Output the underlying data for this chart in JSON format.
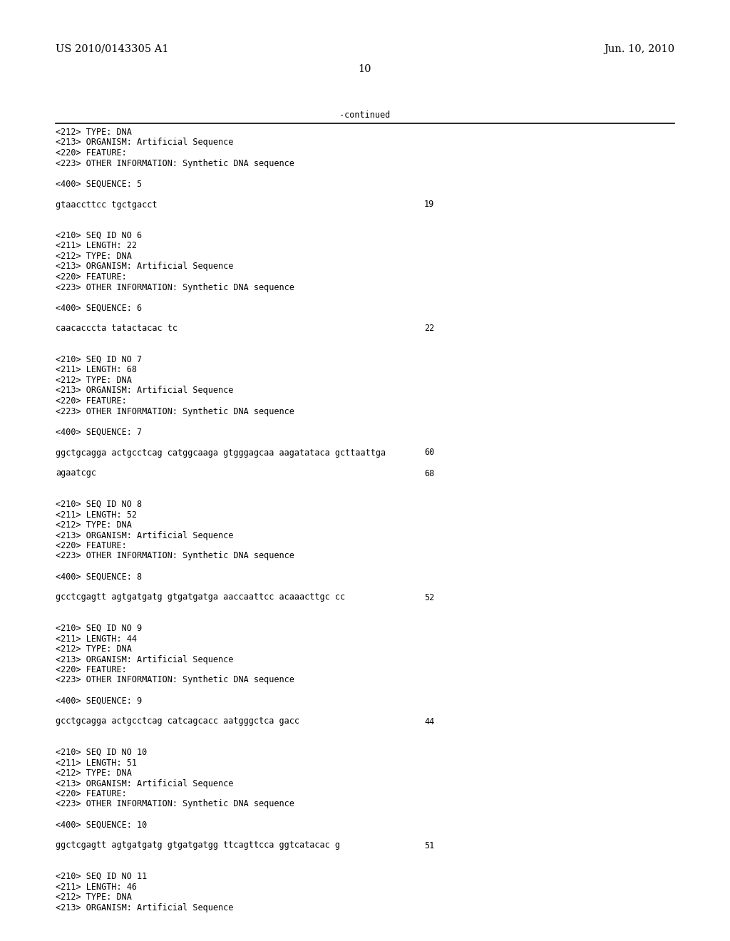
{
  "header_left": "US 2010/0143305 A1",
  "header_right": "Jun. 10, 2010",
  "page_number": "10",
  "continued_label": "-continued",
  "background_color": "#ffffff",
  "text_color": "#000000",
  "body_lines": [
    {
      "text": "<212> TYPE: DNA",
      "indent": true,
      "num": null
    },
    {
      "text": "<213> ORGANISM: Artificial Sequence",
      "indent": true,
      "num": null
    },
    {
      "text": "<220> FEATURE:",
      "indent": true,
      "num": null
    },
    {
      "text": "<223> OTHER INFORMATION: Synthetic DNA sequence",
      "indent": true,
      "num": null
    },
    {
      "text": "",
      "indent": false,
      "num": null
    },
    {
      "text": "<400> SEQUENCE: 5",
      "indent": true,
      "num": null
    },
    {
      "text": "",
      "indent": false,
      "num": null
    },
    {
      "text": "gtaaccttcc tgctgacct",
      "indent": true,
      "num": "19"
    },
    {
      "text": "",
      "indent": false,
      "num": null
    },
    {
      "text": "",
      "indent": false,
      "num": null
    },
    {
      "text": "<210> SEQ ID NO 6",
      "indent": true,
      "num": null
    },
    {
      "text": "<211> LENGTH: 22",
      "indent": true,
      "num": null
    },
    {
      "text": "<212> TYPE: DNA",
      "indent": true,
      "num": null
    },
    {
      "text": "<213> ORGANISM: Artificial Sequence",
      "indent": true,
      "num": null
    },
    {
      "text": "<220> FEATURE:",
      "indent": true,
      "num": null
    },
    {
      "text": "<223> OTHER INFORMATION: Synthetic DNA sequence",
      "indent": true,
      "num": null
    },
    {
      "text": "",
      "indent": false,
      "num": null
    },
    {
      "text": "<400> SEQUENCE: 6",
      "indent": true,
      "num": null
    },
    {
      "text": "",
      "indent": false,
      "num": null
    },
    {
      "text": "caacacccta tatactacac tc",
      "indent": true,
      "num": "22"
    },
    {
      "text": "",
      "indent": false,
      "num": null
    },
    {
      "text": "",
      "indent": false,
      "num": null
    },
    {
      "text": "<210> SEQ ID NO 7",
      "indent": true,
      "num": null
    },
    {
      "text": "<211> LENGTH: 68",
      "indent": true,
      "num": null
    },
    {
      "text": "<212> TYPE: DNA",
      "indent": true,
      "num": null
    },
    {
      "text": "<213> ORGANISM: Artificial Sequence",
      "indent": true,
      "num": null
    },
    {
      "text": "<220> FEATURE:",
      "indent": true,
      "num": null
    },
    {
      "text": "<223> OTHER INFORMATION: Synthetic DNA sequence",
      "indent": true,
      "num": null
    },
    {
      "text": "",
      "indent": false,
      "num": null
    },
    {
      "text": "<400> SEQUENCE: 7",
      "indent": true,
      "num": null
    },
    {
      "text": "",
      "indent": false,
      "num": null
    },
    {
      "text": "ggctgcagga actgcctcag catggcaaga gtgggagcaa aagatataca gcttaattga",
      "indent": true,
      "num": "60"
    },
    {
      "text": "",
      "indent": false,
      "num": null
    },
    {
      "text": "agaatcgc",
      "indent": true,
      "num": "68"
    },
    {
      "text": "",
      "indent": false,
      "num": null
    },
    {
      "text": "",
      "indent": false,
      "num": null
    },
    {
      "text": "<210> SEQ ID NO 8",
      "indent": true,
      "num": null
    },
    {
      "text": "<211> LENGTH: 52",
      "indent": true,
      "num": null
    },
    {
      "text": "<212> TYPE: DNA",
      "indent": true,
      "num": null
    },
    {
      "text": "<213> ORGANISM: Artificial Sequence",
      "indent": true,
      "num": null
    },
    {
      "text": "<220> FEATURE:",
      "indent": true,
      "num": null
    },
    {
      "text": "<223> OTHER INFORMATION: Synthetic DNA sequence",
      "indent": true,
      "num": null
    },
    {
      "text": "",
      "indent": false,
      "num": null
    },
    {
      "text": "<400> SEQUENCE: 8",
      "indent": true,
      "num": null
    },
    {
      "text": "",
      "indent": false,
      "num": null
    },
    {
      "text": "gcctcgagtt agtgatgatg gtgatgatga aaccaattcc acaaacttgc cc",
      "indent": true,
      "num": "52"
    },
    {
      "text": "",
      "indent": false,
      "num": null
    },
    {
      "text": "",
      "indent": false,
      "num": null
    },
    {
      "text": "<210> SEQ ID NO 9",
      "indent": true,
      "num": null
    },
    {
      "text": "<211> LENGTH: 44",
      "indent": true,
      "num": null
    },
    {
      "text": "<212> TYPE: DNA",
      "indent": true,
      "num": null
    },
    {
      "text": "<213> ORGANISM: Artificial Sequence",
      "indent": true,
      "num": null
    },
    {
      "text": "<220> FEATURE:",
      "indent": true,
      "num": null
    },
    {
      "text": "<223> OTHER INFORMATION: Synthetic DNA sequence",
      "indent": true,
      "num": null
    },
    {
      "text": "",
      "indent": false,
      "num": null
    },
    {
      "text": "<400> SEQUENCE: 9",
      "indent": true,
      "num": null
    },
    {
      "text": "",
      "indent": false,
      "num": null
    },
    {
      "text": "gcctgcagga actgcctcag catcagcacc aatgggctca gacc",
      "indent": true,
      "num": "44"
    },
    {
      "text": "",
      "indent": false,
      "num": null
    },
    {
      "text": "",
      "indent": false,
      "num": null
    },
    {
      "text": "<210> SEQ ID NO 10",
      "indent": true,
      "num": null
    },
    {
      "text": "<211> LENGTH: 51",
      "indent": true,
      "num": null
    },
    {
      "text": "<212> TYPE: DNA",
      "indent": true,
      "num": null
    },
    {
      "text": "<213> ORGANISM: Artificial Sequence",
      "indent": true,
      "num": null
    },
    {
      "text": "<220> FEATURE:",
      "indent": true,
      "num": null
    },
    {
      "text": "<223> OTHER INFORMATION: Synthetic DNA sequence",
      "indent": true,
      "num": null
    },
    {
      "text": "",
      "indent": false,
      "num": null
    },
    {
      "text": "<400> SEQUENCE: 10",
      "indent": true,
      "num": null
    },
    {
      "text": "",
      "indent": false,
      "num": null
    },
    {
      "text": "ggctcgagtt agtgatgatg gtgatgatgg ttcagttcca ggtcatacac g",
      "indent": true,
      "num": "51"
    },
    {
      "text": "",
      "indent": false,
      "num": null
    },
    {
      "text": "",
      "indent": false,
      "num": null
    },
    {
      "text": "<210> SEQ ID NO 11",
      "indent": true,
      "num": null
    },
    {
      "text": "<211> LENGTH: 46",
      "indent": true,
      "num": null
    },
    {
      "text": "<212> TYPE: DNA",
      "indent": true,
      "num": null
    },
    {
      "text": "<213> ORGANISM: Artificial Sequence",
      "indent": true,
      "num": null
    }
  ]
}
